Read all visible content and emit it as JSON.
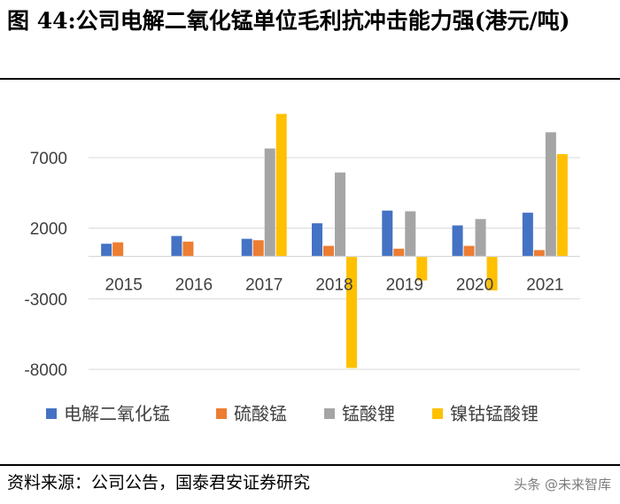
{
  "title": "图 44:公司电解二氧化锰单位毛利抗冲击能力强(港元/吨)",
  "source": "资料来源：公司公告，国泰君安证券研究",
  "watermark": "头条 @未来智库",
  "chart_data": {
    "type": "bar",
    "categories": [
      "2015",
      "2016",
      "2017",
      "2018",
      "2019",
      "2020",
      "2021"
    ],
    "series": [
      {
        "name": "电解二氧化锰",
        "color": "#4472C4",
        "values": [
          900,
          1450,
          1250,
          2350,
          3250,
          2200,
          3100
        ]
      },
      {
        "name": "硫酸锰",
        "color": "#ED7D31",
        "values": [
          1000,
          1050,
          1150,
          750,
          550,
          750,
          450
        ]
      },
      {
        "name": "锰酸锂",
        "color": "#A5A5A5",
        "values": [
          null,
          null,
          7650,
          5950,
          3200,
          2650,
          8800
        ]
      },
      {
        "name": "镍钴锰酸锂",
        "color": "#FFC000",
        "values": [
          null,
          null,
          10100,
          -7900,
          -1700,
          -2400,
          7250
        ]
      }
    ],
    "yticks": [
      7000,
      2000,
      -3000,
      -8000
    ],
    "ylim": [
      -8000,
      10500
    ],
    "grid": true,
    "legend": "bottom"
  }
}
